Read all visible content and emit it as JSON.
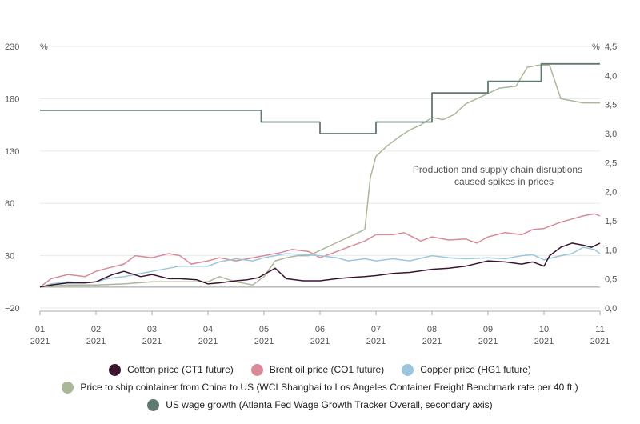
{
  "chart_data": {
    "type": "line",
    "left_axis": {
      "unit": "%",
      "ticks": [
        "230",
        "180",
        "130",
        "80",
        "30",
        "−20"
      ],
      "ylim": [
        -20,
        230
      ]
    },
    "right_axis": {
      "unit": "%",
      "ticks": [
        "4,5",
        "4,0",
        "3,5",
        "3,0",
        "2,5",
        "2,0",
        "1,5",
        "1,0",
        "0,5",
        "0,0"
      ],
      "ylim": [
        0,
        4.5
      ]
    },
    "x_ticks": [
      {
        "month": "01",
        "year": "2021"
      },
      {
        "month": "02",
        "year": "2021"
      },
      {
        "month": "03",
        "year": "2021"
      },
      {
        "month": "04",
        "year": "2021"
      },
      {
        "month": "05",
        "year": "2021"
      },
      {
        "month": "06",
        "year": "2021"
      },
      {
        "month": "07",
        "year": "2021"
      },
      {
        "month": "08",
        "year": "2021"
      },
      {
        "month": "09",
        "year": "2021"
      },
      {
        "month": "10",
        "year": "2021"
      },
      {
        "month": "11",
        "year": "2021"
      }
    ],
    "grid": "horizontal",
    "annotation": [
      "Production and supply chain disruptions",
      "caused spikes in prices"
    ],
    "series": [
      {
        "name": "Cotton price (CT1 future)",
        "color": "#3b1530",
        "axis": "left",
        "x": [
          1.0,
          1.2,
          1.5,
          1.8,
          2.0,
          2.3,
          2.5,
          2.8,
          3.0,
          3.3,
          3.5,
          3.8,
          4.0,
          4.2,
          4.5,
          4.7,
          4.9,
          5.0,
          5.2,
          5.4,
          5.7,
          6.0,
          6.3,
          6.5,
          6.8,
          7.0,
          7.3,
          7.6,
          8.0,
          8.3,
          8.6,
          9.0,
          9.3,
          9.6,
          9.8,
          10.0,
          10.1,
          10.3,
          10.5,
          10.7,
          10.85,
          11.0
        ],
        "values": [
          0,
          2,
          4,
          4,
          5,
          12,
          15,
          10,
          12,
          8,
          8,
          7,
          3,
          4,
          6,
          7,
          9,
          12,
          18,
          8,
          6,
          6,
          8,
          9,
          10,
          11,
          13,
          14,
          17,
          18,
          20,
          25,
          24,
          22,
          24,
          20,
          30,
          38,
          42,
          40,
          38,
          42
        ]
      },
      {
        "name": "Brent oil price (CO1 future)",
        "color": "#d98a98",
        "axis": "left",
        "x": [
          1.0,
          1.2,
          1.5,
          1.8,
          2.0,
          2.2,
          2.5,
          2.7,
          3.0,
          3.3,
          3.5,
          3.7,
          4.0,
          4.2,
          4.5,
          4.7,
          5.0,
          5.3,
          5.5,
          5.8,
          6.0,
          6.3,
          6.5,
          6.8,
          7.0,
          7.3,
          7.5,
          7.8,
          8.0,
          8.3,
          8.6,
          8.8,
          9.0,
          9.3,
          9.6,
          9.8,
          10.0,
          10.3,
          10.5,
          10.7,
          10.9,
          11.0
        ],
        "values": [
          0,
          8,
          12,
          10,
          15,
          18,
          22,
          30,
          28,
          32,
          30,
          22,
          25,
          28,
          25,
          27,
          30,
          33,
          36,
          34,
          28,
          34,
          38,
          44,
          50,
          50,
          52,
          44,
          48,
          45,
          46,
          42,
          48,
          52,
          50,
          55,
          56,
          62,
          65,
          68,
          70,
          68
        ]
      },
      {
        "name": "Copper price (HG1 future)",
        "color": "#9cc6dd",
        "axis": "left",
        "x": [
          1.0,
          1.2,
          1.5,
          1.8,
          2.0,
          2.2,
          2.5,
          2.7,
          3.0,
          3.3,
          3.5,
          3.8,
          4.0,
          4.2,
          4.5,
          4.8,
          5.0,
          5.2,
          5.4,
          5.7,
          6.0,
          6.3,
          6.5,
          6.8,
          7.0,
          7.3,
          7.6,
          8.0,
          8.3,
          8.6,
          9.0,
          9.3,
          9.6,
          9.8,
          10.0,
          10.3,
          10.5,
          10.7,
          10.9,
          11.0
        ],
        "values": [
          0,
          3,
          5,
          4,
          5,
          8,
          10,
          12,
          15,
          18,
          20,
          20,
          20,
          24,
          27,
          25,
          28,
          30,
          32,
          31,
          30,
          28,
          25,
          27,
          25,
          27,
          25,
          30,
          28,
          27,
          28,
          27,
          30,
          31,
          26,
          30,
          32,
          38,
          36,
          32
        ]
      },
      {
        "name": "Price to ship cointainer from China to US (WCI Shanghai to Los Angeles Container Freight Benchmark rate per 40 ft.)",
        "color": "#a9b898",
        "axis": "left",
        "x": [
          1.0,
          1.5,
          2.0,
          2.5,
          3.0,
          3.5,
          4.0,
          4.2,
          4.5,
          4.8,
          5.0,
          5.2,
          5.4,
          5.6,
          5.8,
          6.0,
          6.2,
          6.4,
          6.6,
          6.8,
          6.9,
          7.0,
          7.2,
          7.4,
          7.6,
          7.8,
          8.0,
          8.2,
          8.4,
          8.6,
          8.8,
          9.0,
          9.2,
          9.5,
          9.7,
          9.9,
          10.1,
          10.3,
          10.5,
          10.7,
          11.0
        ],
        "values": [
          0,
          2,
          2,
          3,
          5,
          5,
          5,
          10,
          5,
          2,
          10,
          25,
          28,
          30,
          30,
          35,
          40,
          45,
          50,
          55,
          105,
          125,
          135,
          143,
          150,
          155,
          162,
          160,
          165,
          175,
          180,
          185,
          190,
          192,
          210,
          212,
          212,
          180,
          178,
          176,
          176
        ]
      },
      {
        "name": "US wage growth (Atlanta Fed Wage Growth Tracker Overall, secondary axis)",
        "color": "#607a73",
        "axis": "right",
        "x": [
          1.0,
          2.0,
          3.0,
          4.0,
          4.95,
          4.95,
          6.0,
          6.0,
          7.0,
          7.0,
          8.0,
          8.0,
          9.0,
          9.0,
          9.95,
          9.95,
          11.0
        ],
        "values": [
          3.4,
          3.4,
          3.4,
          3.4,
          3.4,
          3.2,
          3.2,
          3.0,
          3.0,
          3.2,
          3.2,
          3.7,
          3.7,
          3.9,
          3.9,
          4.2,
          4.2
        ]
      }
    ]
  }
}
